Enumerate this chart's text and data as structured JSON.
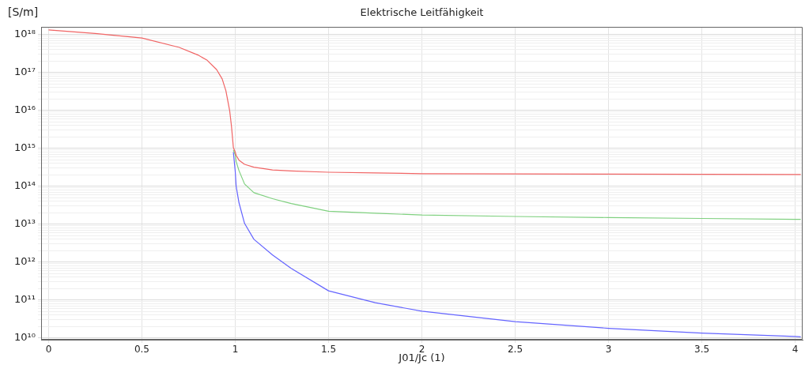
{
  "chart_data": {
    "type": "line",
    "title": "Elektrische Leitfähigkeit",
    "xlabel": "J01/Jc (1)",
    "ylabel": "[S/m]",
    "x": [
      0,
      0.25,
      0.5,
      0.7,
      0.8,
      0.85,
      0.9,
      0.93,
      0.95,
      0.97,
      0.98,
      0.99,
      1.0,
      1.005,
      1.02,
      1.05,
      1.1,
      1.2,
      1.3,
      1.5,
      1.75,
      2,
      2.5,
      3,
      3.5,
      4,
      4.03
    ],
    "series": [
      {
        "color": "#6464ff",
        "values": [
          null,
          null,
          null,
          null,
          null,
          null,
          null,
          null,
          null,
          null,
          null,
          800000000000000.0,
          250000000000000.0,
          100000000000000.0,
          37000000000000.0,
          10500000000000.0,
          4000000000000.0,
          1550000000000.0,
          680000000000.0,
          175000000000.0,
          85000000000.0,
          51000000000.0,
          27000000000.0,
          18000000000.0,
          13500000000.0,
          11000000000.0,
          10700000000.0
        ]
      },
      {
        "color": "#7fd07f",
        "values": [
          null,
          null,
          null,
          null,
          null,
          null,
          null,
          null,
          null,
          null,
          null,
          900000000000000.0,
          680000000000000.0,
          450000000000000.0,
          260000000000000.0,
          115000000000000.0,
          68000000000000.0,
          47000000000000.0,
          35000000000000.0,
          22000000000000.0,
          19500000000000.0,
          17500000000000.0,
          16000000000000.0,
          15000000000000.0,
          14200000000000.0,
          13500000000000.0,
          13500000000000.0
        ]
      },
      {
        "color": "#f06464",
        "values": [
          1.33e+18,
          1.07e+18,
          8.1e+17,
          4.6e+17,
          2.9e+17,
          2.1e+17,
          1.2e+17,
          6.8e+16,
          3.3e+16,
          1e+16,
          3800000000000000.0,
          1050000000000000.0,
          800000000000000.0,
          650000000000000.0,
          490000000000000.0,
          380000000000000.0,
          320000000000000.0,
          270000000000000.0,
          255000000000000.0,
          235000000000000.0,
          225000000000000.0,
          215000000000000.0,
          212000000000000.0,
          210000000000000.0,
          207000000000000.0,
          205000000000000.0,
          205000000000000.0
        ]
      }
    ],
    "xlim": [
      -0.04,
      4.04
    ],
    "xticks": [
      0,
      0.5,
      1,
      1.5,
      2,
      2.5,
      3,
      3.5,
      4
    ],
    "log": "y",
    "ylim": [
      9000000000.0,
      1.6e+18
    ],
    "yticks": [
      {
        "value": 10000000000.0,
        "label": "10¹⁰"
      },
      {
        "value": 20000000000.0,
        "label": null
      },
      {
        "value": 30000000000.0,
        "label": null
      },
      {
        "value": 40000000000.0,
        "label": null
      },
      {
        "value": 50000000000.0,
        "label": null
      },
      {
        "value": 60000000000.0,
        "label": null
      },
      {
        "value": 70000000000.0,
        "label": null
      },
      {
        "value": 80000000000.0,
        "label": null
      },
      {
        "value": 90000000000.0,
        "label": null
      },
      {
        "value": 100000000000.0,
        "label": "10¹¹"
      },
      {
        "value": 200000000000.0,
        "label": null
      },
      {
        "value": 300000000000.0,
        "label": null
      },
      {
        "value": 400000000000.0,
        "label": null
      },
      {
        "value": 500000000000.0,
        "label": null
      },
      {
        "value": 600000000000.0,
        "label": null
      },
      {
        "value": 700000000000.0,
        "label": null
      },
      {
        "value": 800000000000.0,
        "label": null
      },
      {
        "value": 900000000000.0,
        "label": null
      },
      {
        "value": 1000000000000.0,
        "label": "10¹²"
      },
      {
        "value": 2000000000000.0,
        "label": null
      },
      {
        "value": 3000000000000.0,
        "label": null
      },
      {
        "value": 4000000000000.0,
        "label": null
      },
      {
        "value": 5000000000000.0,
        "label": null
      },
      {
        "value": 6000000000000.0,
        "label": null
      },
      {
        "value": 7000000000000.0,
        "label": null
      },
      {
        "value": 8000000000000.0,
        "label": null
      },
      {
        "value": 9000000000000.0,
        "label": null
      },
      {
        "value": 10000000000000.0,
        "label": "10¹³"
      },
      {
        "value": 20000000000000.0,
        "label": null
      },
      {
        "value": 30000000000000.0,
        "label": null
      },
      {
        "value": 40000000000000.0,
        "label": null
      },
      {
        "value": 50000000000000.0,
        "label": null
      },
      {
        "value": 60000000000000.0,
        "label": null
      },
      {
        "value": 70000000000000.0,
        "label": null
      },
      {
        "value": 80000000000000.0,
        "label": null
      },
      {
        "value": 90000000000000.0,
        "label": null
      },
      {
        "value": 100000000000000.0,
        "label": "10¹⁴"
      },
      {
        "value": 200000000000000.0,
        "label": null
      },
      {
        "value": 300000000000000.0,
        "label": null
      },
      {
        "value": 400000000000000.0,
        "label": null
      },
      {
        "value": 500000000000000.0,
        "label": null
      },
      {
        "value": 600000000000000.0,
        "label": null
      },
      {
        "value": 700000000000000.0,
        "label": null
      },
      {
        "value": 800000000000000.0,
        "label": null
      },
      {
        "value": 900000000000000.0,
        "label": null
      },
      {
        "value": 1000000000000000.0,
        "label": "10¹⁵"
      },
      {
        "value": 2000000000000000.0,
        "label": null
      },
      {
        "value": 3000000000000000.0,
        "label": null
      },
      {
        "value": 4000000000000000.0,
        "label": null
      },
      {
        "value": 5000000000000000.0,
        "label": null
      },
      {
        "value": 6000000000000000.0,
        "label": null
      },
      {
        "value": 7000000000000000.0,
        "label": null
      },
      {
        "value": 8000000000000000.0,
        "label": null
      },
      {
        "value": 9000000000000000.0,
        "label": null
      },
      {
        "value": 1e+16,
        "label": "10¹⁶"
      },
      {
        "value": 2e+16,
        "label": null
      },
      {
        "value": 3e+16,
        "label": null
      },
      {
        "value": 4e+16,
        "label": null
      },
      {
        "value": 5e+16,
        "label": null
      },
      {
        "value": 6e+16,
        "label": null
      },
      {
        "value": 7e+16,
        "label": null
      },
      {
        "value": 8e+16,
        "label": null
      },
      {
        "value": 9e+16,
        "label": null
      },
      {
        "value": 1e+17,
        "label": "10¹⁷"
      },
      {
        "value": 2e+17,
        "label": null
      },
      {
        "value": 3e+17,
        "label": null
      },
      {
        "value": 4e+17,
        "label": null
      },
      {
        "value": 5e+17,
        "label": null
      },
      {
        "value": 6e+17,
        "label": null
      },
      {
        "value": 7e+17,
        "label": null
      },
      {
        "value": 8e+17,
        "label": null
      },
      {
        "value": 9e+17,
        "label": null
      },
      {
        "value": 1e+18,
        "label": "10¹⁸"
      }
    ],
    "grid": true,
    "legend": false,
    "marker": "none",
    "line_style": "solid"
  }
}
